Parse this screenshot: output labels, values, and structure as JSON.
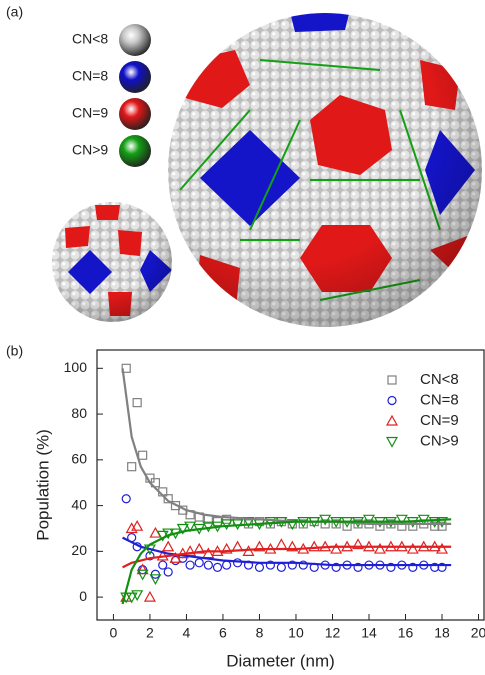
{
  "panel_a": {
    "label": "(a)",
    "legend": [
      {
        "label": "CN<8",
        "color": "#c8c8c8"
      },
      {
        "label": "CN=8",
        "color": "#1010c8"
      },
      {
        "label": "CN=9",
        "color": "#e01818"
      },
      {
        "label": "CN>9",
        "color": "#14a014"
      }
    ]
  },
  "chart_data": {
    "type": "scatter",
    "panel_label": "(b)",
    "x_label": "Diameter (nm)",
    "y_label": "Population (%)",
    "xlim": [
      -0.9,
      20.3
    ],
    "ylim": [
      -10,
      108
    ],
    "xticks": [
      0,
      2,
      4,
      6,
      8,
      10,
      12,
      14,
      16,
      18,
      20
    ],
    "yticks": [
      0,
      20,
      40,
      60,
      80,
      100
    ],
    "legend": "upper right",
    "x": [
      0.7,
      1.0,
      1.3,
      1.6,
      2.0,
      2.3,
      2.7,
      3.0,
      3.4,
      3.8,
      4.2,
      4.7,
      5.2,
      5.7,
      6.2,
      6.8,
      7.4,
      8.0,
      8.6,
      9.2,
      9.8,
      10.4,
      11.0,
      11.6,
      12.2,
      12.8,
      13.4,
      14.0,
      14.6,
      15.2,
      15.8,
      16.4,
      17.0,
      17.6,
      18.0
    ],
    "series": [
      {
        "name": "CN<8",
        "color": "#808080",
        "marker": "square",
        "values": [
          100,
          57,
          85,
          62,
          52,
          50,
          46,
          43,
          40,
          38,
          36,
          35,
          34,
          33,
          34,
          33,
          32,
          33,
          32,
          33,
          32,
          32,
          33,
          32,
          32,
          31,
          32,
          32,
          31,
          32,
          31,
          31,
          32,
          31,
          31
        ]
      },
      {
        "name": "CN=8",
        "color": "#1f1fd6",
        "marker": "circle",
        "values": [
          43,
          26,
          22,
          12,
          18,
          10,
          14,
          11,
          16,
          17,
          14,
          15,
          14,
          13,
          14,
          15,
          14,
          13,
          14,
          13,
          14,
          14,
          13,
          14,
          13,
          14,
          13,
          14,
          14,
          13,
          14,
          13,
          14,
          13,
          13
        ]
      },
      {
        "name": "CN=9",
        "color": "#e02020",
        "marker": "triangle-up",
        "values": [
          0,
          30,
          31,
          12,
          0,
          28,
          18,
          22,
          17,
          19,
          20,
          21,
          19,
          20,
          21,
          22,
          20,
          22,
          21,
          23,
          22,
          21,
          22,
          22,
          21,
          22,
          23,
          22,
          21,
          22,
          22,
          21,
          22,
          22,
          21
        ]
      },
      {
        "name": "CN>9",
        "color": "#109010",
        "marker": "triangle-down",
        "values": [
          0,
          0,
          1,
          10,
          21,
          8,
          27,
          28,
          28,
          30,
          31,
          30,
          31,
          31,
          32,
          32,
          33,
          32,
          33,
          33,
          32,
          33,
          33,
          34,
          33,
          33,
          33,
          34,
          33,
          33,
          34,
          33,
          34,
          33,
          33
        ]
      }
    ],
    "fit_x": [
      0.5,
      1,
      1.5,
      2,
      3,
      4,
      5,
      6,
      8,
      10,
      12,
      14,
      16,
      18.5
    ],
    "fits": [
      {
        "color": "#808080",
        "values": [
          100,
          70,
          57,
          50,
          42,
          38,
          36,
          35,
          34,
          33,
          33,
          32,
          32,
          32
        ]
      },
      {
        "color": "#1f1fd6",
        "values": [
          26,
          24,
          22,
          21,
          19,
          18,
          17,
          16,
          15,
          15,
          14,
          14,
          14,
          14
        ]
      },
      {
        "color": "#e02020",
        "values": [
          13,
          15,
          16,
          17,
          18,
          19,
          20,
          20,
          21,
          21,
          22,
          22,
          22,
          22
        ]
      },
      {
        "color": "#109010",
        "values": [
          -3,
          12,
          19,
          23,
          27,
          29,
          30,
          31,
          32,
          33,
          33,
          33,
          33,
          34
        ]
      }
    ]
  }
}
